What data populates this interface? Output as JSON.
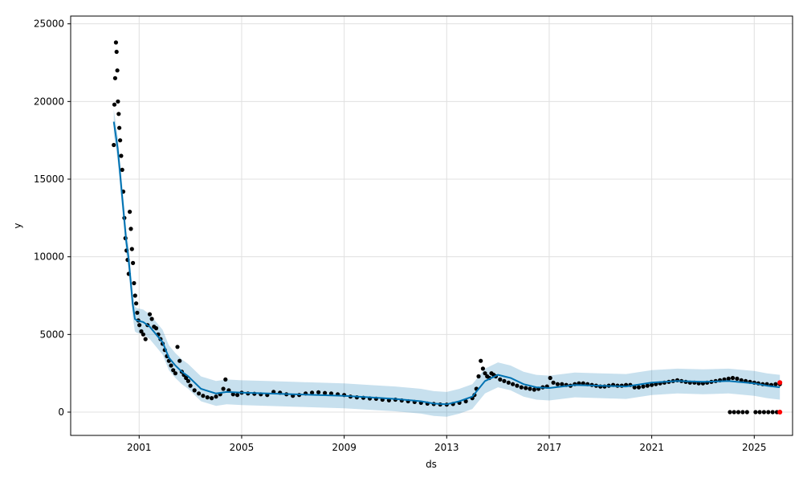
{
  "chart_data": {
    "type": "scatter",
    "title": "",
    "xlabel": "ds",
    "ylabel": "y",
    "x_ticks": [
      "2001",
      "2005",
      "2009",
      "2013",
      "2017",
      "2021",
      "2025"
    ],
    "y_ticks": [
      0,
      5000,
      10000,
      15000,
      20000,
      25000
    ],
    "xlim": [
      "1998-05-01",
      "2026-07-01"
    ],
    "ylim": [
      -1500,
      25500
    ],
    "grid": true,
    "colors": {
      "observed": "#000000",
      "forecast": "#0072B2",
      "interval": "#0072B2",
      "changepoint": "#ff0000",
      "grid": "#e0e0e0"
    },
    "series": [
      {
        "role": "observed",
        "x": [
          "2000-01-05",
          "2000-01-15",
          "2000-01-25",
          "2000-02-05",
          "2000-02-15",
          "2000-02-25",
          "2000-03-05",
          "2000-03-15",
          "2000-03-25",
          "2000-04-05",
          "2000-04-20",
          "2000-05-05",
          "2000-05-20",
          "2000-06-05",
          "2000-06-20",
          "2000-07-05",
          "2000-07-20",
          "2000-08-05",
          "2000-08-20",
          "2000-09-05",
          "2000-09-20",
          "2000-10-05",
          "2000-10-20",
          "2000-11-05",
          "2000-11-20",
          "2000-12-05",
          "2000-12-20",
          "2001-01-05",
          "2001-02-01",
          "2001-03-01",
          "2001-04-01",
          "2001-05-01",
          "2001-06-01",
          "2001-07-01",
          "2001-08-01",
          "2001-09-01",
          "2001-10-01",
          "2001-11-01",
          "2001-12-01",
          "2002-01-01",
          "2002-02-01",
          "2002-03-01",
          "2002-04-01",
          "2002-05-01",
          "2002-06-01",
          "2002-07-01",
          "2002-08-01",
          "2002-09-01",
          "2002-10-01",
          "2002-11-01",
          "2002-12-01",
          "2003-01-01",
          "2003-03-01",
          "2003-05-01",
          "2003-07-01",
          "2003-09-01",
          "2003-11-01",
          "2004-01-01",
          "2004-03-01",
          "2004-04-15",
          "2004-05-15",
          "2004-07-01",
          "2004-09-01",
          "2004-11-01",
          "2005-01-01",
          "2005-04-01",
          "2005-07-01",
          "2005-10-01",
          "2006-01-01",
          "2006-04-01",
          "2006-07-01",
          "2006-10-01",
          "2007-01-01",
          "2007-04-01",
          "2007-07-01",
          "2007-10-01",
          "2008-01-01",
          "2008-04-01",
          "2008-07-01",
          "2008-10-01",
          "2009-01-01",
          "2009-04-01",
          "2009-07-01",
          "2009-10-01",
          "2010-01-01",
          "2010-04-01",
          "2010-07-01",
          "2010-10-01",
          "2011-01-01",
          "2011-04-01",
          "2011-07-01",
          "2011-10-01",
          "2012-01-01",
          "2012-04-01",
          "2012-07-01",
          "2012-10-01",
          "2013-01-01",
          "2013-04-01",
          "2013-07-01",
          "2013-10-01",
          "2014-01-01",
          "2014-02-01",
          "2014-03-01",
          "2014-04-01",
          "2014-05-01",
          "2014-06-01",
          "2014-07-01",
          "2014-08-01",
          "2014-09-01",
          "2014-10-01",
          "2014-11-01",
          "2014-12-01",
          "2015-02-01",
          "2015-04-01",
          "2015-06-01",
          "2015-08-01",
          "2015-10-01",
          "2015-12-01",
          "2016-02-01",
          "2016-04-01",
          "2016-06-01",
          "2016-08-01",
          "2016-10-01",
          "2016-12-01",
          "2017-01-15",
          "2017-03-01",
          "2017-05-01",
          "2017-07-01",
          "2017-09-01",
          "2017-11-01",
          "2018-01-01",
          "2018-03-01",
          "2018-05-01",
          "2018-07-01",
          "2018-09-01",
          "2018-11-01",
          "2019-01-01",
          "2019-03-01",
          "2019-05-01",
          "2019-07-01",
          "2019-09-01",
          "2019-11-01",
          "2020-01-01",
          "2020-03-01",
          "2020-05-01",
          "2020-07-01",
          "2020-09-01",
          "2020-11-01",
          "2021-01-01",
          "2021-03-01",
          "2021-05-01",
          "2021-07-01",
          "2021-09-01",
          "2021-11-01",
          "2022-01-01",
          "2022-03-01",
          "2022-05-01",
          "2022-07-01",
          "2022-09-01",
          "2022-11-01",
          "2023-01-01",
          "2023-03-01",
          "2023-05-01",
          "2023-07-01",
          "2023-09-01",
          "2023-11-01",
          "2024-01-01",
          "2024-03-01",
          "2024-05-01",
          "2024-07-01",
          "2024-09-01",
          "2024-11-01",
          "2025-01-01",
          "2025-03-01",
          "2025-05-01",
          "2025-07-01",
          "2025-09-01",
          "2025-11-01",
          "2026-01-01",
          "2024-01-20",
          "2024-03-20",
          "2024-05-20",
          "2024-07-20",
          "2024-09-20",
          "2025-01-20",
          "2025-03-20",
          "2025-05-20",
          "2025-07-20",
          "2025-09-20",
          "2025-11-20"
        ],
        "y": [
          17200,
          19800,
          21500,
          23800,
          23200,
          22000,
          20000,
          19200,
          18300,
          17500,
          16500,
          15600,
          14200,
          12500,
          11200,
          10400,
          9800,
          8900,
          12900,
          11800,
          10500,
          9600,
          8300,
          7500,
          7000,
          6400,
          5900,
          5600,
          5200,
          5000,
          4700,
          5600,
          6300,
          6000,
          5500,
          5400,
          5000,
          4700,
          4400,
          4000,
          3600,
          3300,
          3000,
          2700,
          2500,
          4200,
          3300,
          2600,
          2400,
          2200,
          2000,
          1700,
          1400,
          1200,
          1050,
          950,
          900,
          1000,
          1150,
          1500,
          2100,
          1400,
          1150,
          1100,
          1250,
          1200,
          1180,
          1150,
          1100,
          1300,
          1250,
          1150,
          1050,
          1100,
          1200,
          1250,
          1280,
          1230,
          1200,
          1150,
          1100,
          1000,
          950,
          920,
          880,
          860,
          800,
          760,
          800,
          750,
          700,
          650,
          600,
          550,
          520,
          490,
          480,
          520,
          600,
          700,
          900,
          1100,
          1500,
          2300,
          3300,
          2800,
          2500,
          2300,
          2200,
          2500,
          2400,
          2300,
          2100,
          2000,
          1900,
          1800,
          1700,
          1600,
          1550,
          1500,
          1450,
          1500,
          1600,
          1650,
          2200,
          1900,
          1800,
          1800,
          1750,
          1700,
          1800,
          1850,
          1850,
          1800,
          1750,
          1700,
          1650,
          1650,
          1700,
          1750,
          1700,
          1700,
          1750,
          1750,
          1600,
          1600,
          1650,
          1700,
          1750,
          1800,
          1850,
          1900,
          1950,
          2000,
          2050,
          2000,
          1950,
          1900,
          1900,
          1850,
          1850,
          1900,
          1950,
          2000,
          2050,
          2100,
          2150,
          2200,
          2150,
          2050,
          2000,
          1950,
          1900,
          1850,
          1800,
          1800,
          1750,
          1800,
          1800,
          0,
          0,
          0,
          0,
          0,
          0,
          0,
          0,
          0,
          0,
          0
        ]
      },
      {
        "role": "forecast",
        "x": [
          "2000-01-05",
          "2000-03-01",
          "2000-04-01",
          "2000-05-01",
          "2000-06-01",
          "2000-07-01",
          "2000-08-01",
          "2000-09-01",
          "2000-10-01",
          "2000-11-01",
          "2000-12-01",
          "2001-03-01",
          "2001-06-01",
          "2001-09-01",
          "2001-12-01",
          "2002-03-01",
          "2002-06-01",
          "2002-09-01",
          "2002-12-01",
          "2003-06-01",
          "2004-01-01",
          "2004-06-01",
          "2005-01-01",
          "2006-01-01",
          "2007-01-01",
          "2008-01-01",
          "2009-01-01",
          "2010-01-01",
          "2011-01-01",
          "2012-01-01",
          "2012-07-01",
          "2013-01-01",
          "2013-07-01",
          "2014-01-01",
          "2014-07-01",
          "2015-01-01",
          "2015-07-01",
          "2016-01-01",
          "2016-07-01",
          "2017-01-01",
          "2018-01-01",
          "2019-01-01",
          "2020-01-01",
          "2021-01-01",
          "2022-01-01",
          "2023-01-01",
          "2024-01-01",
          "2025-01-01",
          "2025-07-01",
          "2026-01-01"
        ],
        "y": [
          18700,
          17000,
          15500,
          14000,
          12500,
          11000,
          10000,
          8500,
          7000,
          6000,
          5900,
          5800,
          5500,
          5000,
          4500,
          3500,
          3000,
          2600,
          2300,
          1500,
          1200,
          1300,
          1250,
          1200,
          1150,
          1100,
          1050,
          950,
          850,
          700,
          550,
          500,
          700,
          1000,
          2000,
          2400,
          2200,
          1800,
          1600,
          1550,
          1750,
          1700,
          1650,
          1900,
          2000,
          1950,
          2000,
          1850,
          1700,
          1600
        ]
      },
      {
        "role": "interval",
        "x": [
          "2000-01-05",
          "2000-03-01",
          "2000-04-01",
          "2000-05-01",
          "2000-06-01",
          "2000-07-01",
          "2000-08-01",
          "2000-09-01",
          "2000-10-01",
          "2000-11-01",
          "2000-12-01",
          "2001-03-01",
          "2001-06-01",
          "2001-09-01",
          "2001-12-01",
          "2002-03-01",
          "2002-06-01",
          "2002-09-01",
          "2002-12-01",
          "2003-06-01",
          "2004-01-01",
          "2004-06-01",
          "2005-01-01",
          "2006-01-01",
          "2007-01-01",
          "2008-01-01",
          "2009-01-01",
          "2010-01-01",
          "2011-01-01",
          "2012-01-01",
          "2012-07-01",
          "2013-01-01",
          "2013-07-01",
          "2014-01-01",
          "2014-07-01",
          "2015-01-01",
          "2015-07-01",
          "2016-01-01",
          "2016-07-01",
          "2017-01-01",
          "2018-01-01",
          "2019-01-01",
          "2020-01-01",
          "2021-01-01",
          "2022-01-01",
          "2023-01-01",
          "2024-01-01",
          "2025-01-01",
          "2025-07-01",
          "2026-01-01"
        ],
        "lower": [
          17900,
          16200,
          14700,
          13200,
          11700,
          10200,
          9200,
          7700,
          6200,
          5200,
          5100,
          5000,
          4700,
          4200,
          3700,
          2700,
          2200,
          1800,
          1500,
          700,
          400,
          500,
          450,
          400,
          350,
          300,
          250,
          150,
          50,
          -100,
          -250,
          -300,
          -100,
          200,
          1200,
          1600,
          1400,
          1000,
          800,
          750,
          950,
          900,
          850,
          1100,
          1200,
          1150,
          1200,
          1050,
          900,
          800
        ],
        "upper": [
          19500,
          17800,
          16300,
          14800,
          13300,
          11800,
          10800,
          9300,
          7800,
          6800,
          6700,
          6600,
          6300,
          5800,
          5300,
          4300,
          3800,
          3400,
          3100,
          2300,
          2000,
          2100,
          2050,
          2000,
          1950,
          1900,
          1850,
          1750,
          1650,
          1500,
          1350,
          1300,
          1500,
          1800,
          2800,
          3200,
          3000,
          2600,
          2400,
          2350,
          2550,
          2500,
          2450,
          2700,
          2800,
          2750,
          2800,
          2650,
          2500,
          2400
        ]
      },
      {
        "role": "changepoint",
        "x": [
          "2026-01-01",
          "2026-01-01"
        ],
        "y": [
          1900,
          0
        ]
      }
    ]
  }
}
